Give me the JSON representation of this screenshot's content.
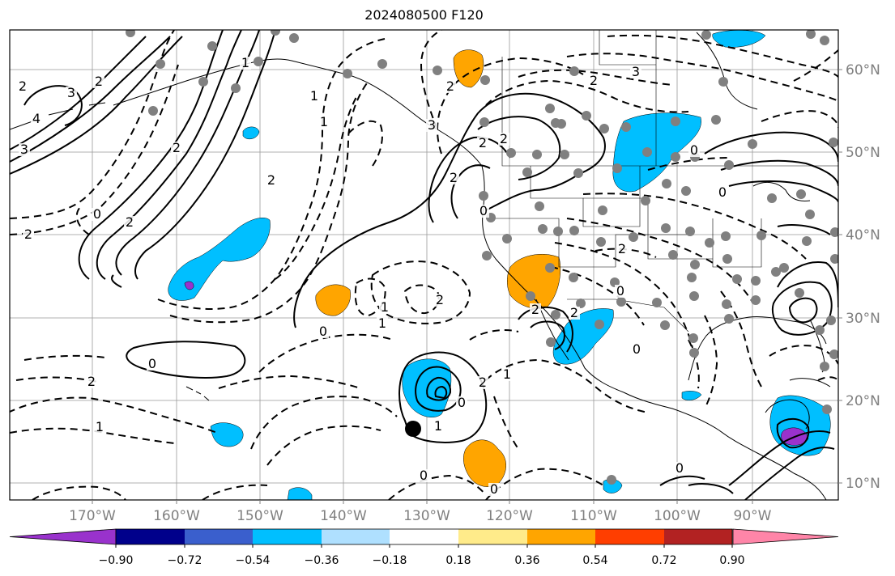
{
  "title": "2024080500 F120",
  "lat_labels": [
    "60°N",
    "50°N",
    "40°N",
    "30°N",
    "20°N",
    "10°N"
  ],
  "lon_labels": [
    "170°W",
    "160°W",
    "150°W",
    "140°W",
    "130°W",
    "120°W",
    "110°W",
    "100°W",
    "90°W"
  ],
  "colorbar": {
    "tick_labels": [
      "−0.90",
      "−0.72",
      "−0.54",
      "−0.36",
      "−0.18",
      "0.18",
      "0.36",
      "0.54",
      "0.72",
      "0.90"
    ],
    "colors": [
      "#9932cc",
      "#00008b",
      "#3a5fcd",
      "#00bfff",
      "#afe0ff",
      "#ffffff",
      "#ffeb8a",
      "#ffa500",
      "#ff3e00",
      "#b22222",
      "#ff85a8"
    ]
  },
  "contour_labels": [
    "2",
    "3",
    "4",
    "2",
    "2",
    "1",
    "0",
    "2",
    "2",
    "3",
    "1",
    "2",
    "1",
    "2",
    "2",
    "2",
    "3",
    "2",
    "0",
    "1",
    "2",
    "1",
    "2",
    "0",
    "0",
    "0",
    "2",
    "1",
    "1",
    "0",
    "0",
    "1",
    "2",
    "2",
    "2",
    "0",
    "0",
    "2",
    "3",
    "0",
    "0",
    "0"
  ]
}
